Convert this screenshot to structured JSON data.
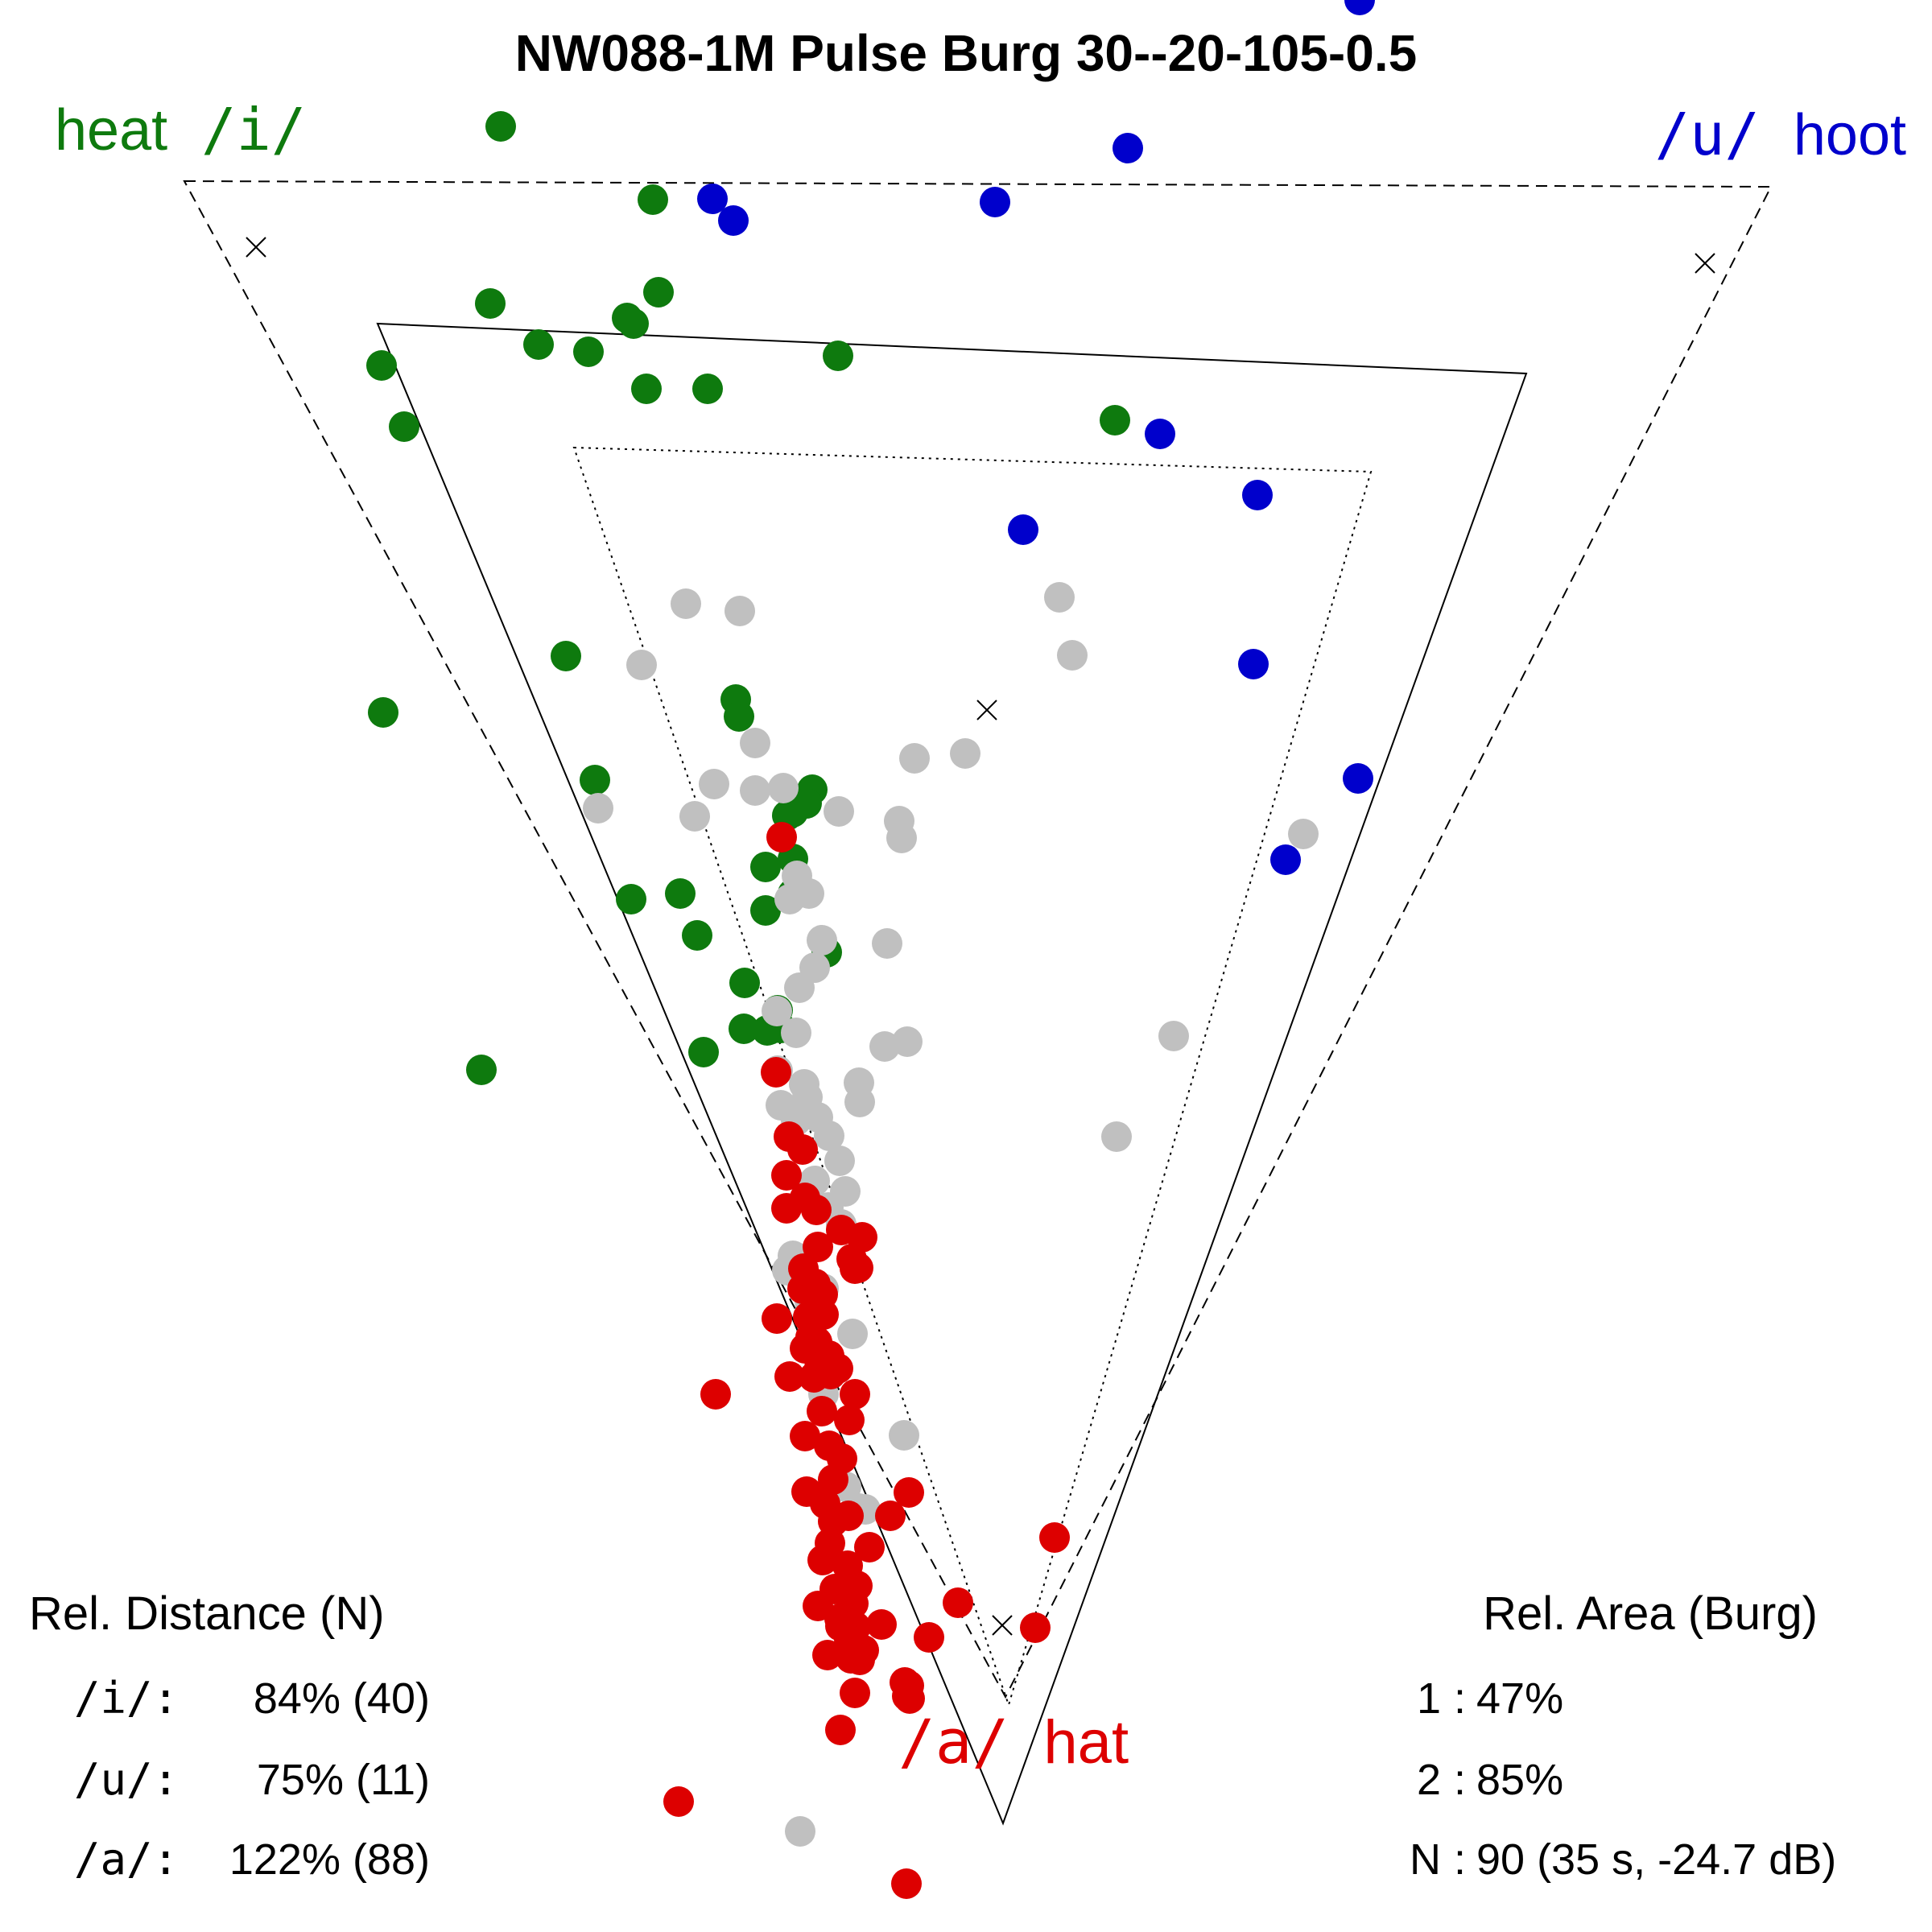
{
  "title": "NW088-1M Pulse Burg 30--20-105-0.5",
  "corner_labels": {
    "i": {
      "phoneme": "/i/",
      "word": "heat",
      "color": "#0e7a0e"
    },
    "u": {
      "phoneme": "/u/",
      "word": "hoot",
      "color": "#0000cc"
    },
    "a": {
      "phoneme": "/a/",
      "word": "hat",
      "color": "#dd0000"
    }
  },
  "rel_distance": {
    "heading": "Rel. Distance (N)",
    "rows": [
      {
        "label": "/i/:",
        "value": "84% (40)"
      },
      {
        "label": "/u/:",
        "value": "75% (11)"
      },
      {
        "label": "/a/:",
        "value": "122% (88)"
      }
    ]
  },
  "rel_area": {
    "heading": "Rel. Area (Burg)",
    "rows": [
      {
        "label": "1",
        "sep": ":",
        "value": "47%"
      },
      {
        "label": "2",
        "sep": ":",
        "value": "85%"
      },
      {
        "label": "N",
        "sep": ":",
        "value": "90 (35 s, -24.7 dB)"
      }
    ]
  },
  "chart_data": {
    "type": "scatter",
    "triangles": [
      {
        "style": "dashed",
        "vertices": [
          [
            229,
            225
          ],
          [
            2200,
            232
          ],
          [
            1249,
            2108
          ]
        ]
      },
      {
        "style": "solid",
        "vertices": [
          [
            469,
            402
          ],
          [
            1896,
            464
          ],
          [
            1246,
            2265
          ]
        ]
      },
      {
        "style": "dotted",
        "vertices": [
          [
            713,
            556
          ],
          [
            1703,
            586
          ],
          [
            1253,
            2118
          ]
        ]
      }
    ],
    "x_markers": [
      [
        318,
        307
      ],
      [
        2118,
        327
      ],
      [
        1226,
        882
      ],
      [
        1245,
        2019
      ]
    ],
    "series": [
      {
        "color": "#0e7a0e",
        "points": [
          [
            622,
            157
          ],
          [
            811,
            248
          ],
          [
            609,
            377
          ],
          [
            669,
            428
          ],
          [
            731,
            437
          ],
          [
            779,
            395
          ],
          [
            787,
            402
          ],
          [
            818,
            363
          ],
          [
            879,
            483
          ],
          [
            803,
            483
          ],
          [
            1041,
            442
          ],
          [
            1385,
            522
          ],
          [
            474,
            454
          ],
          [
            502,
            530
          ],
          [
            703,
            815
          ],
          [
            476,
            885
          ],
          [
            914,
            869
          ],
          [
            918,
            890
          ],
          [
            1009,
            981
          ],
          [
            1002,
            998
          ],
          [
            978,
            1013
          ],
          [
            985,
            1067
          ],
          [
            739,
            969
          ],
          [
            951,
            1077
          ],
          [
            985,
            1110
          ],
          [
            845,
            1110
          ],
          [
            951,
            1131
          ],
          [
            784,
            1117
          ],
          [
            866,
            1162
          ],
          [
            1027,
            1183
          ],
          [
            925,
            1221
          ],
          [
            966,
            1255
          ],
          [
            924,
            1278
          ],
          [
            970,
            1277
          ],
          [
            956,
            1279
          ],
          [
            874,
            1307
          ],
          [
            598,
            1329
          ],
          [
            953,
            1280
          ],
          [
            985,
            1009
          ]
        ]
      },
      {
        "color": "#0000cc",
        "points": [
          [
            1689,
            0
          ],
          [
            1401,
            184
          ],
          [
            885,
            247
          ],
          [
            911,
            274
          ],
          [
            1236,
            251
          ],
          [
            1441,
            539
          ],
          [
            1562,
            615
          ],
          [
            1271,
            658
          ],
          [
            1557,
            825
          ],
          [
            1687,
            967
          ],
          [
            1597,
            1068
          ]
        ]
      },
      {
        "color": "#c0c0c0",
        "points": [
          [
            852,
            750
          ],
          [
            919,
            759
          ],
          [
            1316,
            742
          ],
          [
            1332,
            814
          ],
          [
            797,
            826
          ],
          [
            938,
            923
          ],
          [
            1199,
            936
          ],
          [
            1136,
            942
          ],
          [
            887,
            974
          ],
          [
            938,
            982
          ],
          [
            973,
            979
          ],
          [
            743,
            1004
          ],
          [
            863,
            1014
          ],
          [
            1042,
            1008
          ],
          [
            1117,
            1020
          ],
          [
            1120,
            1041
          ],
          [
            1619,
            1036
          ],
          [
            990,
            1088
          ],
          [
            1005,
            1110
          ],
          [
            981,
            1117
          ],
          [
            1021,
            1168
          ],
          [
            1102,
            1172
          ],
          [
            1012,
            1202
          ],
          [
            993,
            1227
          ],
          [
            965,
            1256
          ],
          [
            989,
            1283
          ],
          [
            1127,
            1294
          ],
          [
            1099,
            1300
          ],
          [
            1458,
            1287
          ],
          [
            966,
            1330
          ],
          [
            999,
            1347
          ],
          [
            1067,
            1345
          ],
          [
            1003,
            1363
          ],
          [
            970,
            1373
          ],
          [
            1068,
            1369
          ],
          [
            989,
            1392
          ],
          [
            1016,
            1388
          ],
          [
            1030,
            1411
          ],
          [
            1387,
            1412
          ],
          [
            1043,
            1442
          ],
          [
            1012,
            1467
          ],
          [
            1050,
            1480
          ],
          [
            1029,
            1500
          ],
          [
            1045,
            1521
          ],
          [
            985,
            1560
          ],
          [
            978,
            1578
          ],
          [
            1023,
            1601
          ],
          [
            1006,
            1617
          ],
          [
            1059,
            1657
          ],
          [
            1022,
            1686
          ],
          [
            1021,
            1708
          ],
          [
            1023,
            1732
          ],
          [
            1123,
            1783
          ],
          [
            1051,
            1847
          ],
          [
            1067,
            1874
          ],
          [
            1075,
            1875
          ],
          [
            994,
            2275
          ]
        ]
      },
      {
        "color": "#dd0000",
        "points": [
          [
            971,
            1040
          ],
          [
            964,
            1332
          ],
          [
            980,
            1412
          ],
          [
            997,
            1428
          ],
          [
            977,
            1460
          ],
          [
            1000,
            1488
          ],
          [
            977,
            1501
          ],
          [
            1014,
            1503
          ],
          [
            1045,
            1528
          ],
          [
            1071,
            1537
          ],
          [
            1016,
            1549
          ],
          [
            1058,
            1564
          ],
          [
            998,
            1576
          ],
          [
            1062,
            1576
          ],
          [
            1013,
            1595
          ],
          [
            1066,
            1575
          ],
          [
            997,
            1601
          ],
          [
            1015,
            1601
          ],
          [
            1022,
            1608
          ],
          [
            1004,
            1636
          ],
          [
            1023,
            1633
          ],
          [
            1007,
            1661
          ],
          [
            1015,
            1667
          ],
          [
            965,
            1638
          ],
          [
            1000,
            1675
          ],
          [
            1030,
            1684
          ],
          [
            1018,
            1699
          ],
          [
            1041,
            1700
          ],
          [
            981,
            1710
          ],
          [
            1011,
            1711
          ],
          [
            1032,
            1707
          ],
          [
            1062,
            1732
          ],
          [
            889,
            1732
          ],
          [
            1021,
            1753
          ],
          [
            1055,
            1764
          ],
          [
            1000,
            1784
          ],
          [
            1030,
            1796
          ],
          [
            1046,
            1812
          ],
          [
            1002,
            1853
          ],
          [
            1035,
            1838
          ],
          [
            1129,
            1854
          ],
          [
            1025,
            1868
          ],
          [
            1035,
            1890
          ],
          [
            1054,
            1883
          ],
          [
            1106,
            1883
          ],
          [
            1031,
            1917
          ],
          [
            1080,
            1922
          ],
          [
            1310,
            1910
          ],
          [
            1022,
            1938
          ],
          [
            1053,
            1945
          ],
          [
            1057,
            1970
          ],
          [
            1037,
            1974
          ],
          [
            1065,
            1970
          ],
          [
            1016,
            1995
          ],
          [
            1060,
            1992
          ],
          [
            1190,
            1991
          ],
          [
            1043,
            2011
          ],
          [
            1044,
            2020
          ],
          [
            1063,
            2021
          ],
          [
            1095,
            2018
          ],
          [
            1286,
            2022
          ],
          [
            1055,
            2037
          ],
          [
            1154,
            2034
          ],
          [
            1073,
            2050
          ],
          [
            1057,
            2060
          ],
          [
            1068,
            2062
          ],
          [
            1124,
            2090
          ],
          [
            1129,
            2094
          ],
          [
            1127,
            2107
          ],
          [
            1130,
            2110
          ],
          [
            1044,
            2149
          ],
          [
            843,
            2238
          ],
          [
            1126,
            2340
          ],
          [
            1028,
            2056
          ],
          [
            1062,
            2103
          ]
        ]
      }
    ]
  }
}
